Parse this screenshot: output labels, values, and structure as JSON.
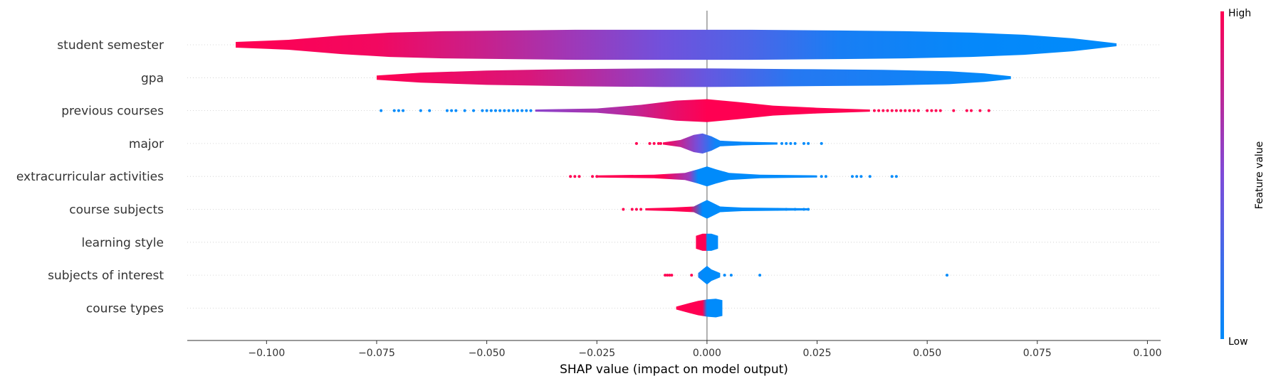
{
  "chart_data": {
    "type": "violin",
    "xlabel": "SHAP value (impact on model output)",
    "xlim": [
      -0.118,
      0.103
    ],
    "xticks": [
      -0.1,
      -0.075,
      -0.05,
      -0.025,
      0.0,
      0.025,
      0.05,
      0.075,
      0.1
    ],
    "xtick_labels": [
      "−0.100",
      "−0.075",
      "−0.050",
      "−0.025",
      "0.000",
      "0.025",
      "0.050",
      "0.075",
      "0.100"
    ],
    "grid": "horizontal dotted",
    "colorbar": {
      "label": "Feature value",
      "high_label": "High",
      "low_label": "Low",
      "high_color": "#ff0052",
      "low_color": "#008bfb"
    },
    "features": [
      {
        "name": "student semester",
        "range": [
          -0.107,
          0.093
        ],
        "profile": [
          [
            -0.107,
            0.004
          ],
          [
            -0.095,
            0.007
          ],
          [
            -0.083,
            0.013
          ],
          [
            -0.072,
            0.017
          ],
          [
            -0.06,
            0.019
          ],
          [
            -0.045,
            0.02
          ],
          [
            -0.03,
            0.021
          ],
          [
            -0.01,
            0.021
          ],
          [
            0.01,
            0.021
          ],
          [
            0.03,
            0.02
          ],
          [
            0.045,
            0.019
          ],
          [
            0.06,
            0.017
          ],
          [
            0.072,
            0.014
          ],
          [
            0.083,
            0.009
          ],
          [
            0.093,
            0.002
          ]
        ],
        "color_stops": [
          [
            -0.107,
            1.0
          ],
          [
            -0.075,
            0.95
          ],
          [
            -0.05,
            0.78
          ],
          [
            -0.03,
            0.62
          ],
          [
            -0.01,
            0.45
          ],
          [
            0.01,
            0.3
          ],
          [
            0.03,
            0.1
          ],
          [
            0.06,
            0.02
          ],
          [
            0.093,
            0.0
          ]
        ]
      },
      {
        "name": "gpa",
        "range": [
          -0.075,
          0.069
        ],
        "profile": [
          [
            -0.075,
            0.003
          ],
          [
            -0.065,
            0.007
          ],
          [
            -0.05,
            0.01
          ],
          [
            -0.03,
            0.012
          ],
          [
            -0.01,
            0.013
          ],
          [
            0.0,
            0.013
          ],
          [
            0.02,
            0.012
          ],
          [
            0.04,
            0.011
          ],
          [
            0.055,
            0.009
          ],
          [
            0.063,
            0.006
          ],
          [
            0.069,
            0.002
          ]
        ],
        "color_stops": [
          [
            -0.075,
            1.0
          ],
          [
            -0.04,
            0.85
          ],
          [
            -0.015,
            0.6
          ],
          [
            0.0,
            0.4
          ],
          [
            0.02,
            0.15
          ],
          [
            0.069,
            0.0
          ]
        ]
      },
      {
        "name": "previous courses",
        "range": [
          -0.039,
          0.037
        ],
        "profile": [
          [
            -0.039,
            0.0015
          ],
          [
            -0.025,
            0.003
          ],
          [
            -0.015,
            0.008
          ],
          [
            -0.007,
            0.014
          ],
          [
            0.0,
            0.016
          ],
          [
            0.007,
            0.012
          ],
          [
            0.015,
            0.007
          ],
          [
            0.025,
            0.004
          ],
          [
            0.037,
            0.0015
          ]
        ],
        "color_stops": [
          [
            -0.039,
            0.55
          ],
          [
            -0.02,
            0.7
          ],
          [
            -0.008,
            0.9
          ],
          [
            0.0,
            1.0
          ],
          [
            0.037,
            1.0
          ]
        ],
        "points": [
          {
            "x": -0.074,
            "c": 0
          },
          {
            "x": -0.071,
            "c": 0
          },
          {
            "x": -0.07,
            "c": 0
          },
          {
            "x": -0.069,
            "c": 0
          },
          {
            "x": -0.065,
            "c": 0
          },
          {
            "x": -0.063,
            "c": 0
          },
          {
            "x": -0.059,
            "c": 0
          },
          {
            "x": -0.058,
            "c": 0
          },
          {
            "x": -0.057,
            "c": 0
          },
          {
            "x": -0.055,
            "c": 0
          },
          {
            "x": -0.053,
            "c": 0
          },
          {
            "x": -0.051,
            "c": 0
          },
          {
            "x": -0.05,
            "c": 0
          },
          {
            "x": -0.049,
            "c": 0
          },
          {
            "x": -0.048,
            "c": 0
          },
          {
            "x": -0.047,
            "c": 0
          },
          {
            "x": -0.046,
            "c": 0
          },
          {
            "x": -0.045,
            "c": 0
          },
          {
            "x": -0.044,
            "c": 0
          },
          {
            "x": -0.043,
            "c": 0
          },
          {
            "x": -0.042,
            "c": 0
          },
          {
            "x": -0.041,
            "c": 0
          },
          {
            "x": -0.04,
            "c": 0
          },
          {
            "x": 0.038,
            "c": 1
          },
          {
            "x": 0.039,
            "c": 1
          },
          {
            "x": 0.04,
            "c": 1
          },
          {
            "x": 0.041,
            "c": 1
          },
          {
            "x": 0.042,
            "c": 1
          },
          {
            "x": 0.043,
            "c": 1
          },
          {
            "x": 0.044,
            "c": 1
          },
          {
            "x": 0.045,
            "c": 1
          },
          {
            "x": 0.046,
            "c": 1
          },
          {
            "x": 0.047,
            "c": 1
          },
          {
            "x": 0.048,
            "c": 1
          },
          {
            "x": 0.05,
            "c": 1
          },
          {
            "x": 0.051,
            "c": 1
          },
          {
            "x": 0.052,
            "c": 1
          },
          {
            "x": 0.053,
            "c": 1
          },
          {
            "x": 0.056,
            "c": 1
          },
          {
            "x": 0.059,
            "c": 1
          },
          {
            "x": 0.06,
            "c": 1
          },
          {
            "x": 0.062,
            "c": 1
          },
          {
            "x": 0.064,
            "c": 1
          }
        ]
      },
      {
        "name": "major",
        "range": [
          -0.01,
          0.016
        ],
        "profile": [
          [
            -0.01,
            0.0015
          ],
          [
            -0.006,
            0.005
          ],
          [
            -0.003,
            0.012
          ],
          [
            -0.001,
            0.014
          ],
          [
            0.001,
            0.01
          ],
          [
            0.003,
            0.004
          ],
          [
            0.008,
            0.0025
          ],
          [
            0.016,
            0.0015
          ]
        ],
        "color_stops": [
          [
            -0.01,
            1.0
          ],
          [
            -0.006,
            0.75
          ],
          [
            -0.002,
            0.45
          ],
          [
            0.002,
            0.05
          ],
          [
            0.016,
            0.0
          ]
        ],
        "points": [
          {
            "x": -0.016,
            "c": 1
          },
          {
            "x": -0.013,
            "c": 1
          },
          {
            "x": -0.012,
            "c": 1
          },
          {
            "x": -0.011,
            "c": 1
          },
          {
            "x": -0.0105,
            "c": 1
          },
          {
            "x": 0.017,
            "c": 0
          },
          {
            "x": 0.018,
            "c": 0
          },
          {
            "x": 0.019,
            "c": 0
          },
          {
            "x": 0.02,
            "c": 0
          },
          {
            "x": 0.022,
            "c": 0
          },
          {
            "x": 0.023,
            "c": 0
          },
          {
            "x": 0.026,
            "c": 0
          }
        ]
      },
      {
        "name": "extracurricular activities",
        "range": [
          -0.025,
          0.025
        ],
        "profile": [
          [
            -0.025,
            0.0015
          ],
          [
            -0.012,
            0.0025
          ],
          [
            -0.005,
            0.005
          ],
          [
            -0.002,
            0.01
          ],
          [
            0.0,
            0.014
          ],
          [
            0.002,
            0.01
          ],
          [
            0.005,
            0.005
          ],
          [
            0.012,
            0.0025
          ],
          [
            0.025,
            0.0015
          ]
        ],
        "color_stops": [
          [
            -0.025,
            1.0
          ],
          [
            -0.01,
            1.0
          ],
          [
            -0.004,
            0.6
          ],
          [
            -0.002,
            0.0
          ],
          [
            0.025,
            0.0
          ]
        ],
        "points": [
          {
            "x": -0.031,
            "c": 1
          },
          {
            "x": -0.03,
            "c": 1
          },
          {
            "x": -0.029,
            "c": 1
          },
          {
            "x": -0.026,
            "c": 1
          },
          {
            "x": -0.025,
            "c": 1
          },
          {
            "x": 0.026,
            "c": 0
          },
          {
            "x": 0.027,
            "c": 0
          },
          {
            "x": 0.033,
            "c": 0
          },
          {
            "x": 0.034,
            "c": 0
          },
          {
            "x": 0.035,
            "c": 0
          },
          {
            "x": 0.037,
            "c": 0
          },
          {
            "x": 0.042,
            "c": 0
          },
          {
            "x": 0.043,
            "c": 0
          }
        ]
      },
      {
        "name": "course subjects",
        "range": [
          -0.014,
          0.023
        ],
        "profile": [
          [
            -0.014,
            0.0015
          ],
          [
            -0.008,
            0.0025
          ],
          [
            -0.003,
            0.004
          ],
          [
            -0.001,
            0.01
          ],
          [
            0.0,
            0.013
          ],
          [
            0.001,
            0.01
          ],
          [
            0.003,
            0.004
          ],
          [
            0.008,
            0.0025
          ],
          [
            0.023,
            0.0015
          ]
        ],
        "color_stops": [
          [
            -0.014,
            1.0
          ],
          [
            -0.004,
            1.0
          ],
          [
            -0.001,
            0.0
          ],
          [
            0.023,
            0.0
          ]
        ],
        "points": [
          {
            "x": -0.019,
            "c": 1
          },
          {
            "x": -0.017,
            "c": 1
          },
          {
            "x": -0.016,
            "c": 1
          },
          {
            "x": -0.015,
            "c": 1
          },
          {
            "x": 0.011,
            "c": 0
          },
          {
            "x": 0.012,
            "c": 0
          },
          {
            "x": 0.013,
            "c": 0
          },
          {
            "x": 0.015,
            "c": 0
          },
          {
            "x": 0.016,
            "c": 0
          },
          {
            "x": 0.018,
            "c": 0
          },
          {
            "x": 0.02,
            "c": 0
          },
          {
            "x": 0.022,
            "c": 0
          },
          {
            "x": 0.023,
            "c": 0
          }
        ]
      },
      {
        "name": "learning style",
        "range": [
          -0.0025,
          0.0025
        ],
        "profile": [
          [
            -0.0025,
            0.009
          ],
          [
            -0.001,
            0.012
          ],
          [
            0.0,
            0.012
          ],
          [
            0.001,
            0.012
          ],
          [
            0.0025,
            0.009
          ]
        ],
        "color_stops": [
          [
            -0.0025,
            1.0
          ],
          [
            -0.0003,
            1.0
          ],
          [
            0.0,
            0.0
          ],
          [
            0.0025,
            0.0
          ]
        ]
      },
      {
        "name": "subjects of interest",
        "range": [
          -0.002,
          0.003
        ],
        "profile": [
          [
            -0.002,
            0.003
          ],
          [
            -0.001,
            0.008
          ],
          [
            0.0,
            0.013
          ],
          [
            0.001,
            0.008
          ],
          [
            0.003,
            0.003
          ]
        ],
        "color_stops": [
          [
            -0.002,
            0.1
          ],
          [
            -0.001,
            0.0
          ],
          [
            0.003,
            0.0
          ]
        ],
        "points": [
          {
            "x": -0.0095,
            "c": 1
          },
          {
            "x": -0.009,
            "c": 1
          },
          {
            "x": -0.0085,
            "c": 1
          },
          {
            "x": -0.008,
            "c": 1
          },
          {
            "x": -0.0035,
            "c": 1
          },
          {
            "x": 0.004,
            "c": 0
          },
          {
            "x": 0.0055,
            "c": 0
          },
          {
            "x": 0.012,
            "c": 0
          },
          {
            "x": 0.0545,
            "c": 0
          }
        ]
      },
      {
        "name": "course types",
        "range": [
          -0.007,
          0.0035
        ],
        "profile": [
          [
            -0.007,
            0.002
          ],
          [
            -0.004,
            0.007
          ],
          [
            -0.002,
            0.01
          ],
          [
            0.0,
            0.012
          ],
          [
            0.002,
            0.013
          ],
          [
            0.0035,
            0.011
          ]
        ],
        "color_stops": [
          [
            -0.007,
            1.0
          ],
          [
            -0.001,
            1.0
          ],
          [
            0.0,
            0.0
          ],
          [
            0.0035,
            0.0
          ]
        ]
      }
    ]
  }
}
